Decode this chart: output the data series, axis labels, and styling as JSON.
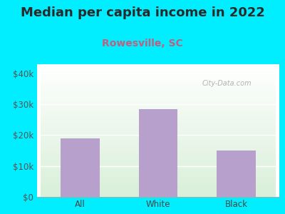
{
  "title": "Median per capita income in 2022",
  "subtitle": "Rowesville, SC",
  "categories": [
    "All",
    "White",
    "Black"
  ],
  "values": [
    19000,
    28500,
    15000
  ],
  "bar_color": "#b8a0cc",
  "title_color": "#2a2a2a",
  "subtitle_color": "#c06080",
  "bg_color": "#00eeff",
  "yticks": [
    0,
    10000,
    20000,
    30000,
    40000
  ],
  "ytick_labels": [
    "$0",
    "$10k",
    "$20k",
    "$30k",
    "$40k"
  ],
  "ylim": [
    0,
    43000
  ],
  "watermark": "City-Data.com",
  "title_fontsize": 13,
  "subtitle_fontsize": 10,
  "tick_fontsize": 8.5
}
